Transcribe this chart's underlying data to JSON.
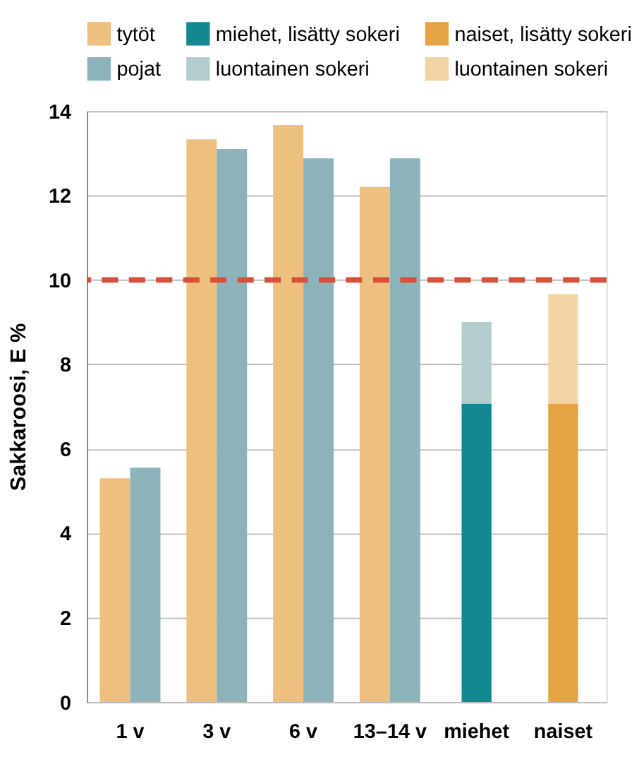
{
  "chart_data": {
    "type": "bar",
    "ylabel": "Sakkaroosi, E %",
    "categories": [
      "1 v",
      "3 v",
      "6 v",
      "13–14 v",
      "miehet",
      "naiset"
    ],
    "series": [
      {
        "name": "tytöt",
        "color": "#edc080",
        "values": [
          5.3,
          13.33,
          13.67,
          12.2,
          null,
          null
        ]
      },
      {
        "name": "pojat",
        "color": "#8cb3ba",
        "values": [
          5.55,
          13.1,
          12.88,
          12.88,
          null,
          null
        ]
      },
      {
        "name": "miehet, lisätty sokeri",
        "color": "#138891",
        "values": [
          null,
          null,
          null,
          null,
          7.07,
          null
        ]
      },
      {
        "name": "luontainen sokeri",
        "color": "#b5cccf",
        "base": [
          null,
          null,
          null,
          null,
          7.07,
          null
        ],
        "values": [
          null,
          null,
          null,
          null,
          1.93,
          null
        ]
      },
      {
        "name": "naiset, lisätty sokeri",
        "color": "#e5a444",
        "values": [
          null,
          null,
          null,
          null,
          null,
          7.07
        ]
      },
      {
        "name": "luontainen sokeri",
        "color": "#f2d3a4",
        "base": [
          null,
          null,
          null,
          null,
          null,
          7.07
        ],
        "values": [
          null,
          null,
          null,
          null,
          null,
          2.59
        ]
      }
    ],
    "ylim": [
      0,
      14
    ],
    "yticks": [
      0,
      2,
      4,
      6,
      8,
      10,
      12,
      14
    ],
    "grid": "y",
    "legend": "top",
    "ref_lines": [
      {
        "axis": "y",
        "value": 10,
        "color": "#d9503a",
        "line_style": "dashed"
      }
    ]
  }
}
